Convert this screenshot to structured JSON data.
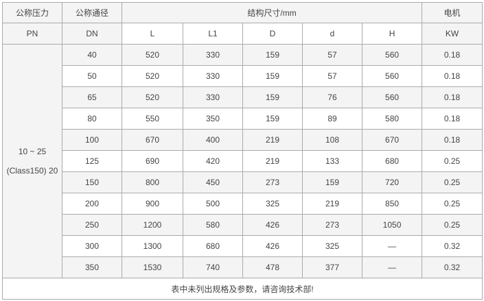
{
  "header": {
    "pn_label": "公称压力",
    "pn_unit": "PN",
    "dn_label": "公称通径",
    "dn_unit": "DN",
    "dims_label": "结构尺寸/mm",
    "dims_columns": [
      "L",
      "L1",
      "D",
      "d",
      "H"
    ],
    "motor_label": "电机",
    "motor_unit": "KW"
  },
  "pressure_line1": "10 ~ 25",
  "pressure_line2": "(Class150) 20",
  "rows": [
    [
      "40",
      "520",
      "330",
      "159",
      "57",
      "560",
      "0.18"
    ],
    [
      "50",
      "520",
      "330",
      "159",
      "57",
      "560",
      "0.18"
    ],
    [
      "65",
      "520",
      "330",
      "159",
      "76",
      "560",
      "0.18"
    ],
    [
      "80",
      "550",
      "350",
      "159",
      "89",
      "580",
      "0.18"
    ],
    [
      "100",
      "670",
      "400",
      "219",
      "108",
      "670",
      "0.18"
    ],
    [
      "125",
      "690",
      "420",
      "219",
      "133",
      "680",
      "0.25"
    ],
    [
      "150",
      "800",
      "450",
      "273",
      "159",
      "720",
      "0.25"
    ],
    [
      "200",
      "900",
      "500",
      "325",
      "219",
      "850",
      "0.25"
    ],
    [
      "250",
      "1200",
      "580",
      "426",
      "273",
      "1050",
      "0.25"
    ],
    [
      "300",
      "1300",
      "680",
      "426",
      "325",
      "—",
      "0.32"
    ],
    [
      "350",
      "1530",
      "740",
      "478",
      "377",
      "—",
      "0.32"
    ]
  ],
  "footer_note": "表中未列出规格及参数，请咨询技术部!"
}
